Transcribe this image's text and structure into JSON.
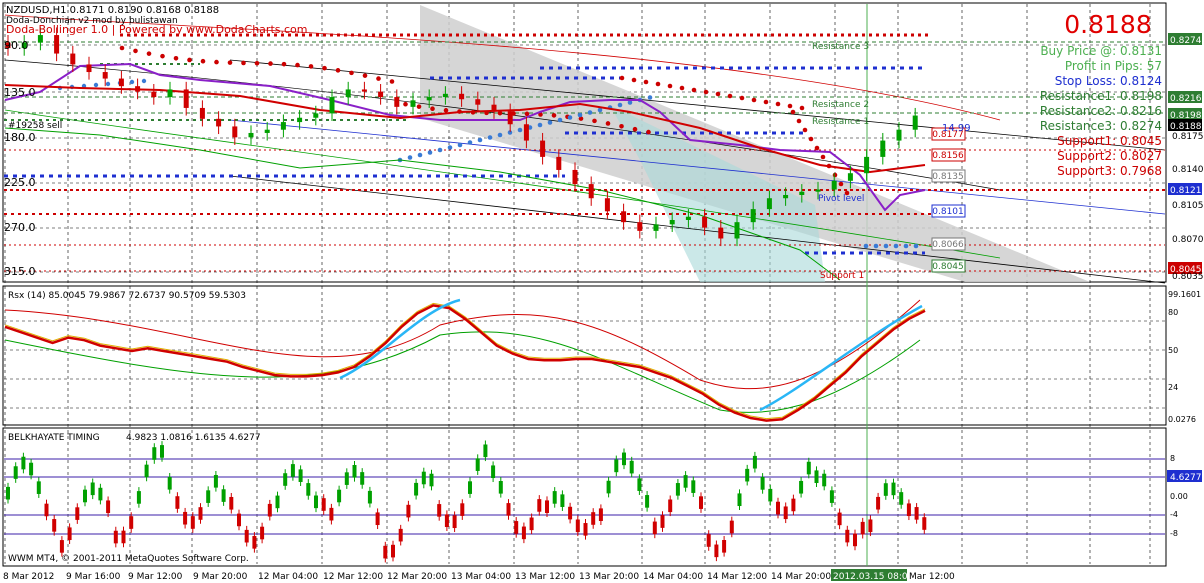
{
  "chart_data": [
    {
      "type": "candlestick",
      "title": "NZDUSD,H1  0.8171 0.8190 0.8168 0.8188",
      "indicator_labels": [
        "Doda-Donchian v2 mod by bulistawan",
        "Doda-Bollinger 1.0 | Powered by www.DodaCharts.com"
      ],
      "order_label": "#19258 sell",
      "y_range": [
        0.8035,
        0.8274
      ],
      "y_ticks": [
        0.8274,
        0.8216,
        0.8198,
        0.8188,
        0.8175,
        0.814,
        0.8121,
        0.8105,
        0.807,
        0.8045,
        0.8035
      ],
      "left_scale": [
        "90.0",
        "135.0",
        "180.0",
        "225.0",
        "270.0",
        "315.0"
      ],
      "close_series": [
        0.825,
        0.8255,
        0.8262,
        0.8245,
        0.8235,
        0.8228,
        0.8222,
        0.8215,
        0.821,
        0.8205,
        0.8212,
        0.8195,
        0.8185,
        0.8178,
        0.8168,
        0.8172,
        0.8175,
        0.8182,
        0.8186,
        0.819,
        0.8205,
        0.8212,
        0.821,
        0.8205,
        0.8196,
        0.8202,
        0.8205,
        0.8208,
        0.8203,
        0.8198,
        0.8192,
        0.818,
        0.8165,
        0.815,
        0.8138,
        0.8125,
        0.8112,
        0.81,
        0.809,
        0.8082,
        0.8088,
        0.8092,
        0.8095,
        0.8085,
        0.8075,
        0.809,
        0.8102,
        0.8112,
        0.8115,
        0.8118,
        0.812,
        0.8128,
        0.8135,
        0.815,
        0.8165,
        0.8175,
        0.8188
      ],
      "summary": {
        "price": "0.8188",
        "buy_price": "Buy Price @: 0.8131",
        "profit": "Profit in Pips: 57",
        "stop_loss": "Stop Loss: 0.8124",
        "resistance1": "Resistance1: 0.8198",
        "resistance2": "Resistance2: 0.8216",
        "resistance3": "Resistance3: 0.8274",
        "support1": "Support1: 0.8045",
        "support2": "Support2: 0.8027",
        "support3": "Support3: 0.7968"
      },
      "level_labels": {
        "resistance3": "Resistance 3",
        "resistance2": "Resistance 2",
        "resistance1": "Resistance 1",
        "pivot": "Pivot level",
        "support1": "Support 1",
        "pips": "14.99"
      },
      "channel_boxes": [
        "0.8177",
        "0.8156",
        "0.8135",
        "0.8101",
        "0.8066",
        "0.8045"
      ],
      "price_tags": [
        {
          "text": "0.8274",
          "bg": "#2e7d32",
          "fg": "#ffffff"
        },
        {
          "text": "0.8216",
          "bg": "#2e7d32",
          "fg": "#ffffff"
        },
        {
          "text": "0.8198",
          "bg": "#2e7d32",
          "fg": "#ffffff"
        },
        {
          "text": "0.8188",
          "bg": "#000000",
          "fg": "#ffffff"
        },
        {
          "text": "0.8121",
          "bg": "#1e2fd0",
          "fg": "#ffffff"
        },
        {
          "text": "0.8045",
          "bg": "#cc0000",
          "fg": "#ffffff"
        }
      ],
      "right_axis_plain": [
        "0.8175",
        "0.8140",
        "0.8105",
        "0.8070",
        "0.8035"
      ]
    },
    {
      "type": "line",
      "title": "Rsx (14) 85.0045 79.9867 72.6737 90.5709 59.5303",
      "y_range": [
        0,
        100
      ],
      "y_ticks": [
        "99.1601",
        "80",
        "50",
        "24",
        "0.0276"
      ],
      "rsx_series": [
        74,
        70,
        66,
        62,
        66,
        64,
        60,
        58,
        56,
        58,
        56,
        54,
        52,
        50,
        48,
        44,
        41,
        38,
        37,
        37,
        38,
        40,
        44,
        52,
        62,
        74,
        84,
        90,
        88,
        80,
        70,
        60,
        54,
        50,
        49,
        49,
        50,
        50,
        48,
        46,
        44,
        40,
        36,
        30,
        24,
        16,
        10,
        6,
        4,
        5,
        12,
        20,
        30,
        40,
        52,
        62,
        72,
        80,
        86
      ]
    },
    {
      "type": "histogram",
      "title": "BELKHAYATE TIMING",
      "values_label": "4.9823 1.0816 1.6135 4.6277",
      "y_range": [
        -8,
        8
      ],
      "y_ticks": [
        "8",
        "4.6277",
        "0.00",
        "-4",
        "-8"
      ]
    }
  ],
  "x_axis": {
    "labels": [
      "8 Mar 2012",
      "9 Mar 16:00",
      "9 Mar 12:00",
      "9 Mar 20:00",
      "12 Mar 04:00",
      "12 Mar 12:00",
      "12 Mar 20:00",
      "13 Mar 04:00",
      "13 Mar 12:00",
      "13 Mar 20:00",
      "14 Mar 04:00",
      "14 Mar 12:00",
      "14 Mar 20:00",
      "2012.03.15 08:00",
      "Mar 12:00"
    ],
    "highlight": "2012.03.15 08:00"
  },
  "footer": "WWM MT4, © 2001-2011 MetaQuotes Software Corp.",
  "colors": {
    "bull": "#00a000",
    "bear": "#d00000",
    "donchian": "#8a20c8",
    "bollinger": "#d00000",
    "psar_blue": "#3a7bd5",
    "resistance": "#2e7d32",
    "support": "#cc0000",
    "stoploss": "#1e2fd0"
  }
}
